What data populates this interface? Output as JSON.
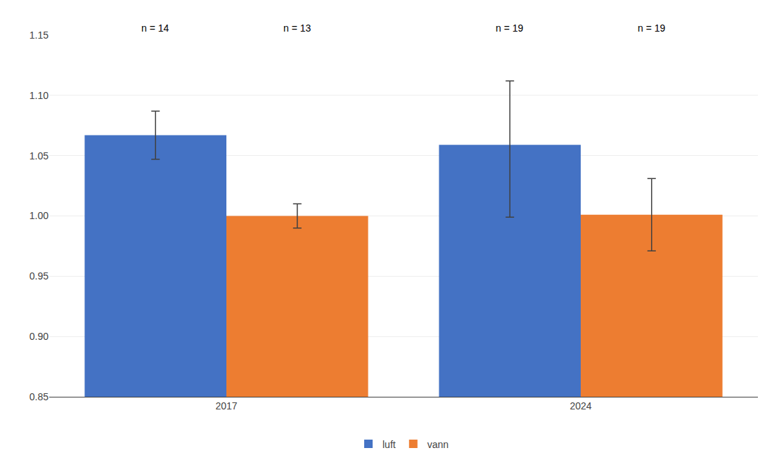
{
  "chart_data": {
    "type": "bar",
    "categories": [
      "2017",
      "2024"
    ],
    "series": [
      {
        "name": "luft",
        "color": "#4472C4",
        "values": [
          1.067,
          1.059
        ],
        "error_upper": [
          0.02,
          0.053
        ],
        "error_lower": [
          0.02,
          0.06
        ],
        "annotations": [
          "n = 14",
          "n = 19"
        ]
      },
      {
        "name": "vann",
        "color": "#ED7D31",
        "values": [
          1.0,
          1.001
        ],
        "error_upper": [
          0.01,
          0.03
        ],
        "error_lower": [
          0.01,
          0.03
        ],
        "annotations": [
          "n = 13",
          "n = 19"
        ]
      }
    ],
    "ylim": [
      0.85,
      1.15
    ],
    "yticks": [
      0.85,
      {
        "value": 0.9,
        "label": "0.90"
      },
      0.95,
      {
        "value": 1.0,
        "label": "1.00"
      },
      1.05,
      {
        "value": 1.1,
        "label": "1.10"
      },
      1.15
    ],
    "grid": true,
    "legend": "bottom"
  }
}
